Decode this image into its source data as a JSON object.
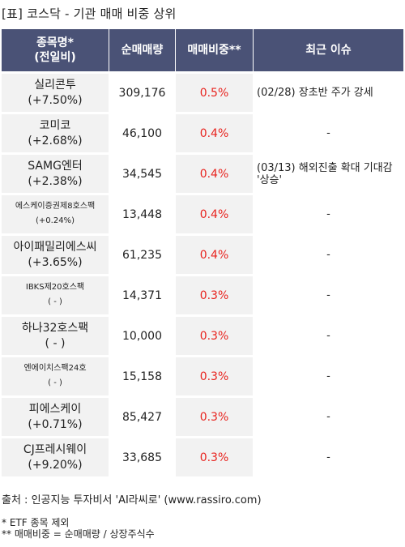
{
  "title": "[표] 코스닥 - 기관 매매 비중 상위",
  "headers": {
    "name_line1": "종목명*",
    "name_line2": "(전일비)",
    "volume": "순매매량",
    "ratio": "매매비중**",
    "issue": "최근 이슈"
  },
  "rows": [
    {
      "name": "실리콘투",
      "change": "(+7.50%)",
      "volume": "309,176",
      "ratio": "0.5%",
      "issue": "(02/28) 장초반 주가 강세"
    },
    {
      "name": "코미코",
      "change": "(+2.68%)",
      "volume": "46,100",
      "ratio": "0.4%",
      "issue": "-"
    },
    {
      "name": "SAMG엔터",
      "change": "(+2.38%)",
      "volume": "34,545",
      "ratio": "0.4%",
      "issue": "(03/13) 해외진출 확대 기대감 '상승'"
    },
    {
      "name": "에스케이증권제8호스팩",
      "change": "(+0.24%)",
      "volume": "13,448",
      "ratio": "0.4%",
      "issue": "-"
    },
    {
      "name": "아이패밀리에스씨",
      "change": "(+3.65%)",
      "volume": "61,235",
      "ratio": "0.4%",
      "issue": "-"
    },
    {
      "name": "IBKS제20호스팩",
      "change": "( - )",
      "volume": "14,371",
      "ratio": "0.3%",
      "issue": "-"
    },
    {
      "name": "하나32호스팩",
      "change": "( - )",
      "volume": "10,000",
      "ratio": "0.3%",
      "issue": "-"
    },
    {
      "name": "엔에이치스팩24호",
      "change": "( - )",
      "volume": "15,158",
      "ratio": "0.3%",
      "issue": "-"
    },
    {
      "name": "피에스케이",
      "change": "(+0.71%)",
      "volume": "85,427",
      "ratio": "0.3%",
      "issue": "-"
    },
    {
      "name": "CJ프레시웨이",
      "change": "(+9.20%)",
      "volume": "33,685",
      "ratio": "0.3%",
      "issue": "-"
    }
  ],
  "source": "출처 : 인공지능 투자비서 'AI라씨로' (www.rassiro.com)",
  "note1": "* ETF 종목 제외",
  "note2": "** 매매비중 = 순매매량 / 상장주식수",
  "colors": {
    "header_bg": "#4a5276",
    "ratio_red": "#e8231e",
    "band_gray": "#f2f2f2"
  }
}
